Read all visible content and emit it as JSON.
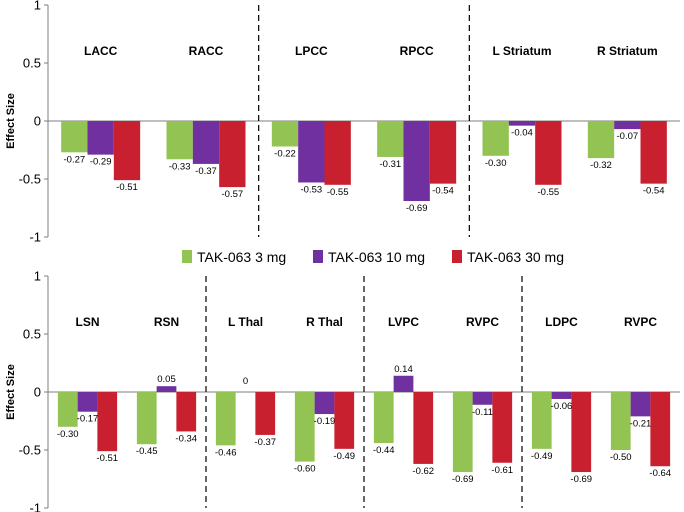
{
  "legend": [
    {
      "label": "TAK-063 3 mg",
      "color": "#92c353"
    },
    {
      "label": "TAK-063 10 mg",
      "color": "#7030a0"
    },
    {
      "label": "TAK-063 30 mg",
      "color": "#c8202f"
    }
  ],
  "chart_data": [
    {
      "type": "bar",
      "title": "",
      "ylabel": "Effect Size",
      "ylim": [
        -1,
        1
      ],
      "yticks": [
        "1",
        "0.5",
        "0",
        "-0.5",
        "-1"
      ],
      "categories": [
        "LACC",
        "RACC",
        "LPCC",
        "RPCC",
        "L Striatum",
        "R Striatum"
      ],
      "series": [
        {
          "name": "TAK-063 3 mg",
          "values": [
            -0.27,
            -0.33,
            -0.22,
            -0.31,
            -0.3,
            -0.32
          ],
          "labels": [
            "-0.27",
            "-0.33",
            "-0.22",
            "-0.31",
            "-0.30",
            "-0.32"
          ]
        },
        {
          "name": "TAK-063 10 mg",
          "values": [
            -0.29,
            -0.37,
            -0.53,
            -0.69,
            -0.04,
            -0.07
          ],
          "labels": [
            "-0.29",
            "-0.37",
            "-0.53",
            "-0.69",
            "-0.04",
            "-0.07"
          ]
        },
        {
          "name": "TAK-063 30 mg",
          "values": [
            -0.51,
            -0.57,
            -0.55,
            -0.54,
            -0.55,
            -0.54
          ],
          "labels": [
            "-0.51",
            "-0.57",
            "-0.55",
            "-0.54",
            "-0.55",
            "-0.54"
          ]
        }
      ],
      "group_separators_after": [
        2,
        4
      ]
    },
    {
      "type": "bar",
      "title": "",
      "ylabel": "Effect Size",
      "ylim": [
        -1,
        1
      ],
      "yticks": [
        "1",
        "0.5",
        "0",
        "-0.5",
        "-1"
      ],
      "categories": [
        "LSN",
        "RSN",
        "L Thal",
        "R Thal",
        "LVPC",
        "RVPC",
        "LDPC",
        "RVPC"
      ],
      "series": [
        {
          "name": "TAK-063 3 mg",
          "values": [
            -0.3,
            -0.45,
            -0.46,
            -0.6,
            -0.44,
            -0.69,
            -0.49,
            -0.5
          ],
          "labels": [
            "-0.30",
            "-0.45",
            "-0.46",
            "-0.60",
            "-0.44",
            "-0.69",
            "-0.49",
            "-0.50"
          ]
        },
        {
          "name": "TAK-063 10 mg",
          "values": [
            -0.17,
            0.05,
            0,
            -0.19,
            0.14,
            -0.11,
            -0.06,
            -0.21
          ],
          "labels": [
            "-0.17",
            "0.05",
            "0",
            "-0.19",
            "0.14",
            "-0.11",
            "-0.06",
            "-0.21"
          ]
        },
        {
          "name": "TAK-063 30 mg",
          "values": [
            -0.51,
            -0.34,
            -0.37,
            -0.49,
            -0.62,
            -0.61,
            -0.69,
            -0.64
          ],
          "labels": [
            "-0.51",
            "-0.34",
            "-0.37",
            "-0.49",
            "-0.62",
            "-0.61",
            "-0.69",
            "-0.64"
          ]
        }
      ],
      "group_separators_after": [
        2,
        4,
        6
      ]
    }
  ]
}
